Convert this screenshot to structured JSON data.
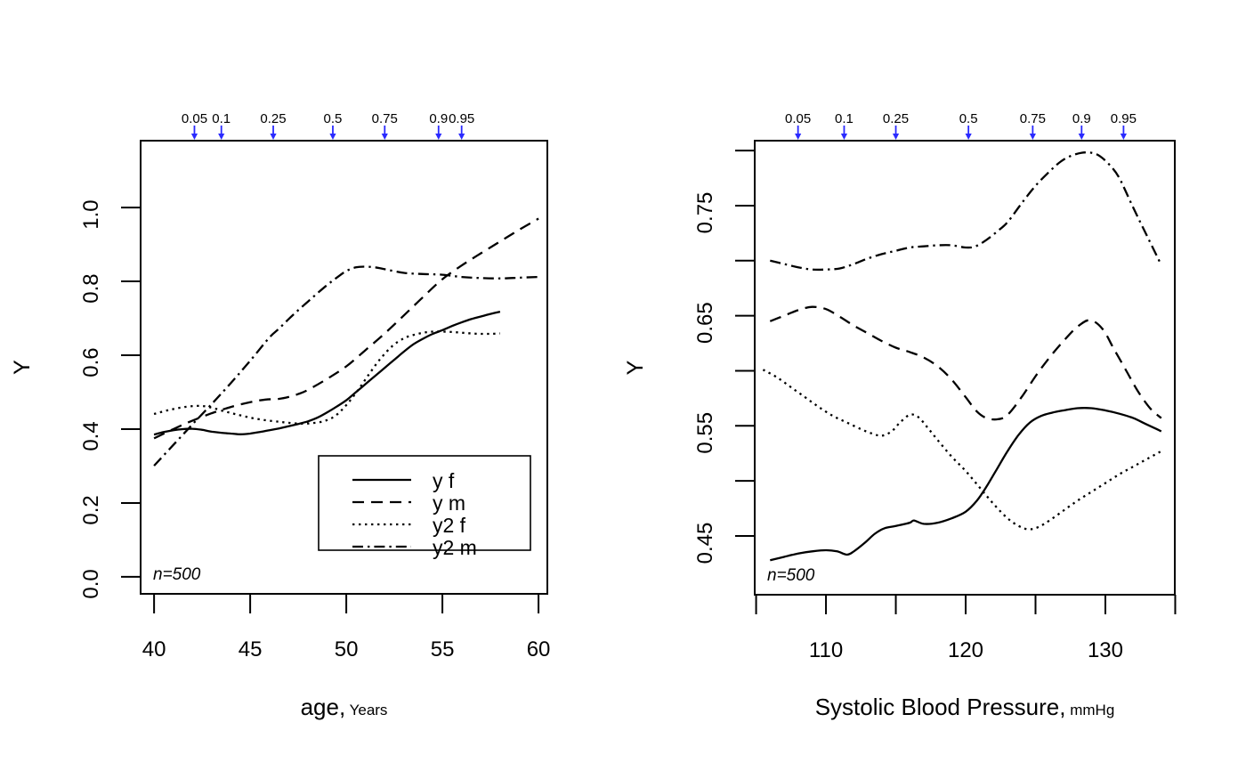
{
  "meta": {
    "background": "#ffffff",
    "line_color": "#000000",
    "arrow_color": "#2a2aff",
    "text_color": "#000000"
  },
  "chart_data": [
    {
      "id": "left",
      "type": "line",
      "ylabel": "Y",
      "xlabel": "age,",
      "xlabel_unit": "Years",
      "xlim": [
        39.3,
        60.46
      ],
      "ylim": [
        -0.046,
        1.181
      ],
      "xticks": [
        40,
        45,
        50,
        55,
        60
      ],
      "xtick_labels": [
        "40",
        "45",
        "50",
        "55",
        "60"
      ],
      "yticks": [
        0.0,
        0.2,
        0.4,
        0.6,
        0.8,
        1.0
      ],
      "ytick_labels": [
        "0.0",
        "0.2",
        "0.4",
        "0.6",
        "0.8",
        "1.0"
      ],
      "quantile_arrows": {
        "labels": [
          "0.05",
          "0.1",
          "0.25",
          "0.5",
          "0.75",
          "0.9",
          "0.95"
        ],
        "x": [
          42.1,
          43.5,
          46.2,
          49.3,
          52.0,
          54.8,
          56.0
        ]
      },
      "annotation": "n=500",
      "legend": {
        "entries": [
          {
            "label": "y f",
            "dash": "solid"
          },
          {
            "label": "y m",
            "dash": "dashed"
          },
          {
            "label": "y2 f",
            "dash": "dotted"
          },
          {
            "label": "y2 m",
            "dash": "dashdot"
          }
        ]
      },
      "series": [
        {
          "name": "y f",
          "dash": "solid",
          "x": [
            40,
            40.5,
            41,
            41.5,
            42,
            42.5,
            43,
            43.5,
            44,
            44.5,
            45,
            45.5,
            46,
            46.5,
            47,
            47.5,
            48,
            48.5,
            49,
            49.5,
            50,
            50.5,
            51,
            51.5,
            52,
            52.5,
            53,
            53.5,
            54,
            54.5,
            55,
            55.5,
            56,
            56.5,
            57,
            57.5,
            58
          ],
          "y": [
            0.385,
            0.392,
            0.397,
            0.4,
            0.401,
            0.398,
            0.393,
            0.39,
            0.388,
            0.386,
            0.388,
            0.392,
            0.397,
            0.402,
            0.408,
            0.414,
            0.421,
            0.431,
            0.445,
            0.461,
            0.478,
            0.5,
            0.522,
            0.544,
            0.566,
            0.588,
            0.61,
            0.63,
            0.645,
            0.658,
            0.668,
            0.679,
            0.689,
            0.698,
            0.705,
            0.712,
            0.718
          ]
        },
        {
          "name": "y m",
          "dash": "dashed",
          "x": [
            40,
            41,
            42,
            43,
            44,
            45,
            45.8,
            46.5,
            47,
            47.5,
            48,
            49,
            50,
            51,
            52,
            53,
            54,
            55,
            56,
            57,
            58,
            59,
            60
          ],
          "y": [
            0.375,
            0.4,
            0.423,
            0.443,
            0.46,
            0.473,
            0.48,
            0.482,
            0.487,
            0.495,
            0.506,
            0.536,
            0.57,
            0.614,
            0.659,
            0.708,
            0.758,
            0.806,
            0.843,
            0.876,
            0.908,
            0.94,
            0.97
          ]
        },
        {
          "name": "y2 f",
          "dash": "dotted",
          "x": [
            40,
            40.8,
            41.6,
            42.4,
            43,
            43.6,
            44.2,
            45,
            45.8,
            46.5,
            47,
            47.6,
            48.2,
            48.8,
            49.4,
            50,
            50.6,
            51.2,
            51.8,
            52.4,
            53,
            53.5,
            54,
            54.5,
            55,
            55.5,
            56,
            56.5,
            57,
            57.5,
            58
          ],
          "y": [
            0.441,
            0.452,
            0.46,
            0.463,
            0.458,
            0.449,
            0.441,
            0.431,
            0.424,
            0.42,
            0.417,
            0.415,
            0.416,
            0.421,
            0.435,
            0.465,
            0.505,
            0.55,
            0.592,
            0.625,
            0.646,
            0.655,
            0.661,
            0.664,
            0.664,
            0.663,
            0.661,
            0.659,
            0.658,
            0.658,
            0.659
          ]
        },
        {
          "name": "y2 m",
          "dash": "dashdot",
          "x": [
            40,
            41,
            42,
            43,
            44,
            45,
            46,
            46.5,
            47,
            47.5,
            48,
            48.5,
            49,
            49.5,
            50,
            50.5,
            51,
            51.5,
            52,
            53,
            54,
            55,
            56,
            57,
            58,
            59,
            60
          ],
          "y": [
            0.301,
            0.357,
            0.413,
            0.468,
            0.525,
            0.585,
            0.648,
            0.672,
            0.698,
            0.722,
            0.745,
            0.768,
            0.79,
            0.81,
            0.828,
            0.838,
            0.84,
            0.838,
            0.833,
            0.823,
            0.82,
            0.818,
            0.812,
            0.809,
            0.808,
            0.81,
            0.812
          ]
        }
      ]
    },
    {
      "id": "right",
      "type": "line",
      "ylabel": "Y",
      "xlabel": "Systolic Blood Pressure,",
      "xlabel_unit": "mmHg",
      "xlim": [
        104.9,
        134.97
      ],
      "ylim": [
        0.3966,
        0.809
      ],
      "xticks": [
        105,
        110,
        115,
        120,
        125,
        130,
        135
      ],
      "xtick_labels": [
        "",
        "110",
        "",
        "120",
        "",
        "130",
        ""
      ],
      "yticks": [
        0.45,
        0.5,
        0.55,
        0.6,
        0.65,
        0.7,
        0.75,
        0.8
      ],
      "ytick_labels": [
        "0.45",
        "",
        "0.55",
        "",
        "0.65",
        "",
        "0.75",
        ""
      ],
      "quantile_arrows": {
        "labels": [
          "0.05",
          "0.1",
          "0.25",
          "0.5",
          "0.75",
          "0.9",
          "0.95"
        ],
        "x": [
          108.0,
          111.3,
          115.0,
          120.2,
          124.8,
          128.3,
          131.3
        ]
      },
      "annotation": "n=500",
      "series": [
        {
          "name": "y f",
          "dash": "solid",
          "x": [
            106,
            107,
            108,
            109,
            110,
            110.8,
            111.5,
            112,
            112.8,
            113.5,
            114.2,
            115,
            116,
            116.3,
            117,
            118,
            119,
            120,
            120.8,
            121.5,
            122.2,
            123,
            123.8,
            124.6,
            125.4,
            126.2,
            127,
            128,
            129,
            130,
            131,
            132,
            133,
            134
          ],
          "y": [
            0.428,
            0.431,
            0.434,
            0.436,
            0.437,
            0.436,
            0.433,
            0.436,
            0.444,
            0.452,
            0.457,
            0.459,
            0.462,
            0.464,
            0.461,
            0.462,
            0.466,
            0.472,
            0.482,
            0.495,
            0.51,
            0.527,
            0.542,
            0.553,
            0.559,
            0.562,
            0.564,
            0.566,
            0.566,
            0.564,
            0.561,
            0.557,
            0.551,
            0.545
          ]
        },
        {
          "name": "y m",
          "dash": "dashed",
          "x": [
            106,
            107,
            108,
            109,
            110,
            111,
            112,
            113,
            114,
            115,
            116,
            117,
            118,
            119,
            120,
            120.8,
            121.5,
            122.3,
            123,
            124,
            125,
            126,
            127,
            128,
            128.9,
            129.8,
            130.6,
            131.5,
            132.3,
            133.2,
            134
          ],
          "y": [
            0.645,
            0.65,
            0.655,
            0.658,
            0.656,
            0.649,
            0.641,
            0.634,
            0.627,
            0.621,
            0.617,
            0.612,
            0.604,
            0.592,
            0.576,
            0.563,
            0.557,
            0.556,
            0.56,
            0.576,
            0.595,
            0.612,
            0.627,
            0.64,
            0.646,
            0.638,
            0.62,
            0.6,
            0.582,
            0.566,
            0.557
          ]
        },
        {
          "name": "y2 f",
          "dash": "dotted",
          "x": [
            105.5,
            106.5,
            107.5,
            108.5,
            109.5,
            110.5,
            111.5,
            112.5,
            113.3,
            114,
            114.7,
            115.3,
            116,
            116.6,
            117.3,
            118,
            119,
            120,
            121,
            122,
            123,
            123.8,
            124.5,
            125.2,
            126,
            127,
            128,
            129,
            130,
            131,
            132,
            133,
            134
          ],
          "y": [
            0.601,
            0.594,
            0.585,
            0.576,
            0.567,
            0.559,
            0.553,
            0.547,
            0.543,
            0.541,
            0.545,
            0.553,
            0.56,
            0.558,
            0.548,
            0.537,
            0.522,
            0.509,
            0.494,
            0.479,
            0.466,
            0.459,
            0.456,
            0.458,
            0.464,
            0.473,
            0.482,
            0.49,
            0.498,
            0.506,
            0.513,
            0.52,
            0.527
          ]
        },
        {
          "name": "y2 m",
          "dash": "dashdot",
          "x": [
            106,
            107,
            108,
            109,
            110,
            111,
            112,
            113,
            114,
            115,
            116,
            117,
            118,
            119,
            120,
            120.7,
            121.5,
            122.3,
            123,
            124,
            125,
            126,
            126.8,
            127.5,
            128.3,
            129,
            129.6,
            130.3,
            131,
            132,
            133,
            134
          ],
          "y": [
            0.7,
            0.697,
            0.694,
            0.692,
            0.692,
            0.693,
            0.697,
            0.702,
            0.706,
            0.709,
            0.712,
            0.713,
            0.714,
            0.714,
            0.712,
            0.713,
            0.719,
            0.727,
            0.735,
            0.752,
            0.768,
            0.781,
            0.79,
            0.795,
            0.798,
            0.798,
            0.795,
            0.787,
            0.775,
            0.748,
            0.722,
            0.696
          ]
        }
      ]
    }
  ]
}
